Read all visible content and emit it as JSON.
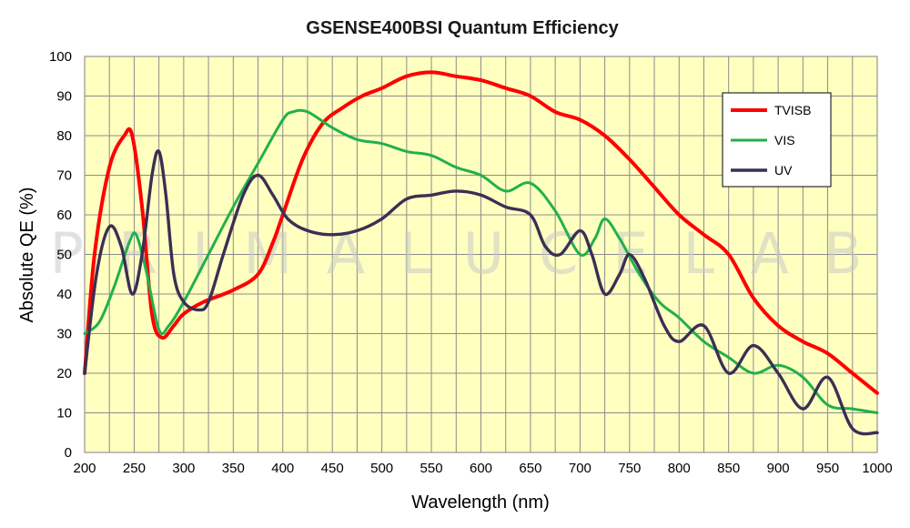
{
  "chart_data": {
    "type": "line",
    "title": "GSENSE400BSI Quantum Efficiency",
    "xlabel": "Wavelength (nm)",
    "ylabel": "Absolute QE (%)",
    "xlim": [
      200,
      1000
    ],
    "ylim": [
      0,
      100
    ],
    "xticks": [
      200,
      250,
      300,
      350,
      400,
      450,
      500,
      550,
      600,
      650,
      700,
      750,
      800,
      850,
      900,
      950,
      1000
    ],
    "yticks": [
      0,
      10,
      20,
      30,
      40,
      50,
      60,
      70,
      80,
      90,
      100
    ],
    "grid": true,
    "plot_background": "#ffffc0",
    "watermark": "PRIMALUCELAB",
    "legend": {
      "position": "top-right"
    },
    "series": [
      {
        "name": "TVISB",
        "color": "#ff0000",
        "x": [
          200,
          210,
          225,
          240,
          248,
          258,
          268,
          278,
          290,
          300,
          320,
          350,
          375,
          390,
          400,
          420,
          440,
          460,
          480,
          500,
          525,
          550,
          575,
          600,
          625,
          650,
          675,
          700,
          725,
          750,
          775,
          800,
          825,
          850,
          875,
          900,
          925,
          950,
          975,
          1000
        ],
        "y": [
          20,
          50,
          72,
          80,
          80,
          62,
          35,
          29,
          32,
          35,
          38,
          41,
          45,
          53,
          60,
          74,
          83,
          87,
          90,
          92,
          95,
          96,
          95,
          94,
          92,
          90,
          86,
          84,
          80,
          74,
          67,
          60,
          55,
          50,
          39,
          32,
          28,
          25,
          20,
          15
        ]
      },
      {
        "name": "VIS",
        "color": "#22b04b",
        "x": [
          200,
          215,
          230,
          245,
          252,
          262,
          275,
          285,
          300,
          325,
          350,
          375,
          400,
          410,
          425,
          450,
          475,
          500,
          525,
          550,
          575,
          600,
          625,
          650,
          675,
          700,
          715,
          725,
          740,
          760,
          780,
          800,
          825,
          850,
          875,
          900,
          925,
          950,
          975,
          1000
        ],
        "y": [
          30,
          33,
          42,
          53,
          55,
          46,
          31,
          32,
          38,
          50,
          62,
          73,
          84,
          86,
          86,
          82,
          79,
          78,
          76,
          75,
          72,
          70,
          66,
          68,
          61,
          50,
          54,
          59,
          54,
          45,
          38,
          34,
          28,
          24,
          20,
          22,
          19,
          12,
          11,
          10
        ]
      },
      {
        "name": "UV",
        "color": "#3a2f55",
        "x": [
          200,
          212,
          225,
          237,
          248,
          258,
          268,
          275,
          282,
          290,
          300,
          315,
          325,
          340,
          360,
          375,
          390,
          405,
          425,
          450,
          475,
          500,
          525,
          550,
          575,
          600,
          625,
          650,
          665,
          680,
          700,
          712,
          725,
          740,
          750,
          765,
          785,
          800,
          825,
          850,
          875,
          900,
          925,
          950,
          975,
          1000
        ],
        "y": [
          20,
          45,
          57,
          52,
          40,
          50,
          70,
          76,
          65,
          45,
          38,
          36,
          38,
          50,
          65,
          70,
          65,
          59,
          56,
          55,
          56,
          59,
          64,
          65,
          66,
          65,
          62,
          60,
          52,
          50,
          56,
          50,
          40,
          45,
          50,
          44,
          32,
          28,
          32,
          20,
          27,
          20,
          11,
          19,
          6,
          5
        ]
      }
    ]
  }
}
